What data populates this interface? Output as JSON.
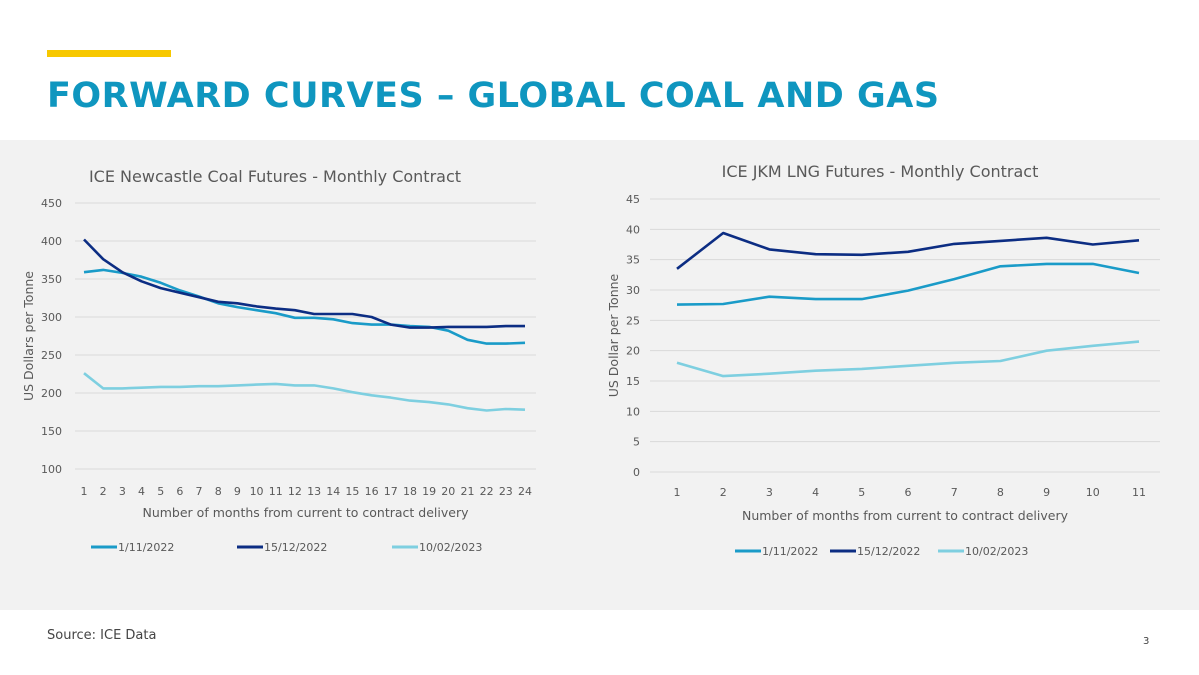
{
  "header": {
    "title": "FORWARD CURVES – GLOBAL COAL AND GAS",
    "accent_color": "#f7c800",
    "title_color": "#0f96bf"
  },
  "footer": {
    "source": "Source: ICE Data",
    "page_number": "3"
  },
  "chart_data": [
    {
      "type": "line",
      "title": "ICE Newcastle Coal Futures - Monthly Contract",
      "xlabel": "Number of months from current to contract delivery",
      "ylabel": "US Dollars per Tonne",
      "ylim": [
        100,
        450
      ],
      "yticks": [
        100,
        150,
        200,
        250,
        300,
        350,
        400,
        450
      ],
      "grid": true,
      "legend": "bottom",
      "categories": [
        1,
        2,
        3,
        4,
        5,
        6,
        7,
        8,
        9,
        10,
        11,
        12,
        13,
        14,
        15,
        16,
        17,
        18,
        19,
        20,
        21,
        22,
        23,
        24
      ],
      "series": [
        {
          "name": "1/11/2022",
          "color": "#1a9bc8",
          "values": [
            359,
            362,
            358,
            353,
            345,
            335,
            327,
            318,
            313,
            309,
            305,
            299,
            299,
            297,
            292,
            290,
            290,
            288,
            287,
            282,
            270,
            265,
            265,
            266
          ]
        },
        {
          "name": "15/12/2022",
          "color": "#0c2d83",
          "values": [
            402,
            376,
            359,
            347,
            338,
            332,
            326,
            320,
            318,
            314,
            311,
            309,
            304,
            304,
            304,
            300,
            290,
            286,
            286,
            287,
            287,
            287,
            288,
            288
          ]
        },
        {
          "name": "10/02/2023",
          "color": "#7ecfe0",
          "values": [
            226,
            206,
            206,
            207,
            208,
            208,
            209,
            209,
            210,
            211,
            212,
            210,
            210,
            206,
            201,
            197,
            194,
            190,
            188,
            185,
            180,
            177,
            179,
            178
          ]
        }
      ]
    },
    {
      "type": "line",
      "title": "ICE JKM LNG Futures - Monthly Contract",
      "xlabel": "Number of months from current to contract delivery",
      "ylabel": "US Dollar per Tonne",
      "ylim": [
        0,
        45
      ],
      "yticks": [
        0,
        5,
        10,
        15,
        20,
        25,
        30,
        35,
        40,
        45
      ],
      "grid": true,
      "legend": "bottom",
      "categories": [
        1,
        2,
        3,
        4,
        5,
        6,
        7,
        8,
        9,
        10,
        11
      ],
      "series": [
        {
          "name": "1/11/2022",
          "color": "#1a9bc8",
          "values": [
            27.6,
            27.7,
            28.9,
            28.5,
            28.5,
            29.9,
            31.8,
            33.9,
            34.3,
            34.3,
            32.8
          ]
        },
        {
          "name": "15/12/2022",
          "color": "#0c2d83",
          "values": [
            33.5,
            39.4,
            36.7,
            35.9,
            35.8,
            36.3,
            37.6,
            38.1,
            38.6,
            37.5,
            38.2
          ]
        },
        {
          "name": "10/02/2023",
          "color": "#7ecfe0",
          "values": [
            18.0,
            15.8,
            16.2,
            16.7,
            17.0,
            17.5,
            18.0,
            18.3,
            20.0,
            20.8,
            21.5
          ]
        }
      ]
    }
  ]
}
